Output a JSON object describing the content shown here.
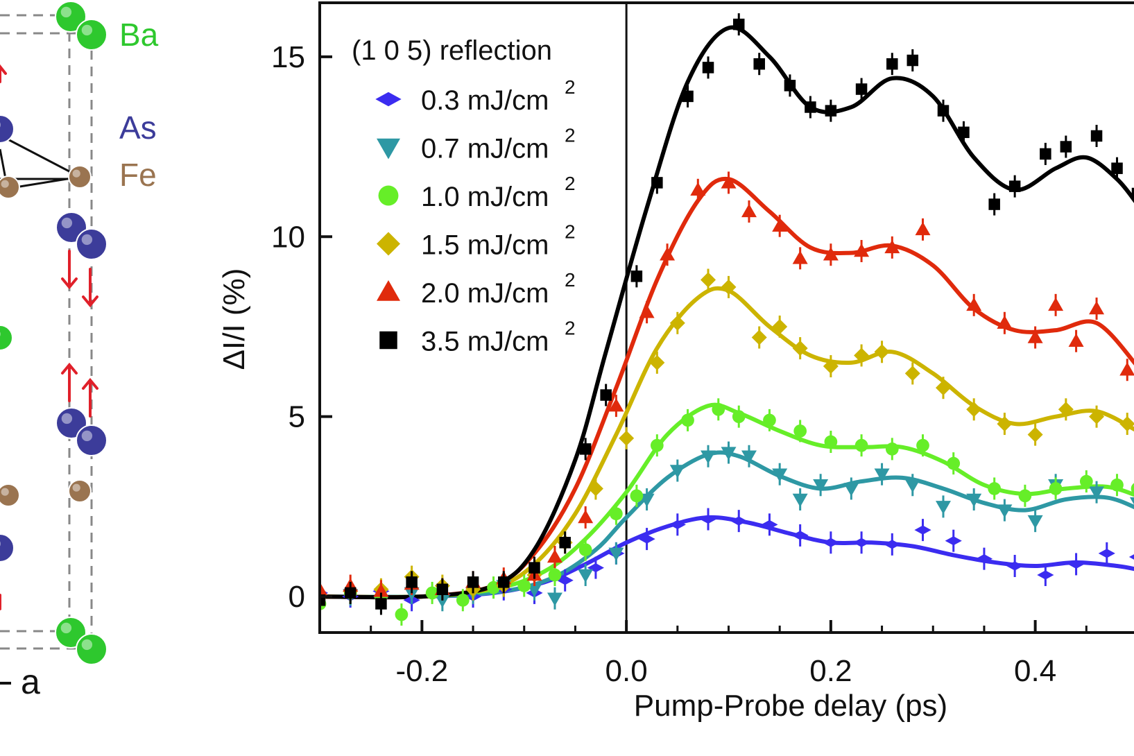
{
  "crystal": {
    "atom_labels": [
      "Ba",
      "As",
      "Fe"
    ],
    "axis_label": "a",
    "colors": {
      "Ba": "#2ec82e",
      "As": "#3c3c9a",
      "Fe": "#9a7450",
      "arrow": "#e0202a",
      "cell": "#888888"
    }
  },
  "chart_data": {
    "type": "scatter",
    "xlabel": "Pump-Probe delay (ps)",
    "ylabel": "ΔI/I (%)",
    "xlim": [
      -0.3,
      0.5
    ],
    "ylim": [
      -1,
      16.5
    ],
    "xticks": [
      -0.2,
      0.0,
      0.2,
      0.4
    ],
    "xtick_labels": [
      "-0.2",
      "0.0",
      "0.2",
      "0.4"
    ],
    "yticks": [
      0,
      5,
      10,
      15
    ],
    "ytick_labels": [
      "0",
      "5",
      "10",
      "15"
    ],
    "vline_x": 0.0,
    "legend": {
      "title": "(1 0 5) reflection",
      "position": "top-left"
    },
    "series": [
      {
        "name": "0.3 mJ/cm",
        "unit_exp": "2",
        "color": "#3b2cf0",
        "marker": "diamond-wide",
        "points": [
          [
            -0.3,
            0.1
          ],
          [
            -0.27,
            0.0
          ],
          [
            -0.24,
            0.15
          ],
          [
            -0.21,
            -0.1
          ],
          [
            -0.18,
            0.05
          ],
          [
            -0.15,
            0.0
          ],
          [
            -0.12,
            0.2
          ],
          [
            -0.09,
            0.1
          ],
          [
            -0.06,
            0.45
          ],
          [
            -0.03,
            0.8
          ],
          [
            -0.01,
            1.2
          ],
          [
            0.02,
            1.6
          ],
          [
            0.05,
            2.0
          ],
          [
            0.08,
            2.15
          ],
          [
            0.11,
            2.1
          ],
          [
            0.14,
            2.0
          ],
          [
            0.17,
            1.7
          ],
          [
            0.2,
            1.5
          ],
          [
            0.23,
            1.5
          ],
          [
            0.26,
            1.45
          ],
          [
            0.29,
            1.85
          ],
          [
            0.32,
            1.55
          ],
          [
            0.35,
            1.05
          ],
          [
            0.38,
            0.85
          ],
          [
            0.41,
            0.6
          ],
          [
            0.44,
            0.9
          ],
          [
            0.47,
            1.2
          ],
          [
            0.5,
            1.1
          ]
        ],
        "fit": [
          [
            -0.3,
            0.0
          ],
          [
            -0.2,
            0.0
          ],
          [
            -0.13,
            0.1
          ],
          [
            -0.08,
            0.4
          ],
          [
            -0.04,
            0.9
          ],
          [
            0.0,
            1.5
          ],
          [
            0.04,
            1.95
          ],
          [
            0.08,
            2.2
          ],
          [
            0.12,
            2.05
          ],
          [
            0.16,
            1.75
          ],
          [
            0.2,
            1.5
          ],
          [
            0.24,
            1.5
          ],
          [
            0.28,
            1.4
          ],
          [
            0.32,
            1.15
          ],
          [
            0.36,
            0.95
          ],
          [
            0.4,
            0.85
          ],
          [
            0.44,
            0.95
          ],
          [
            0.48,
            0.85
          ],
          [
            0.5,
            0.75
          ]
        ]
      },
      {
        "name": "0.7 mJ/cm",
        "unit_exp": "2",
        "color": "#2e98a4",
        "marker": "triangle-down",
        "points": [
          [
            -0.3,
            -0.1
          ],
          [
            -0.27,
            0.05
          ],
          [
            -0.24,
            -0.15
          ],
          [
            -0.21,
            0.1
          ],
          [
            -0.18,
            -0.1
          ],
          [
            -0.15,
            0.1
          ],
          [
            -0.12,
            0.3
          ],
          [
            -0.09,
            0.2
          ],
          [
            -0.07,
            -0.05
          ],
          [
            -0.04,
            0.6
          ],
          [
            -0.01,
            1.2
          ],
          [
            0.02,
            2.7
          ],
          [
            0.05,
            3.5
          ],
          [
            0.08,
            3.9
          ],
          [
            0.1,
            4.0
          ],
          [
            0.12,
            3.9
          ],
          [
            0.15,
            3.4
          ],
          [
            0.17,
            2.7
          ],
          [
            0.19,
            3.1
          ],
          [
            0.22,
            3.0
          ],
          [
            0.25,
            3.4
          ],
          [
            0.28,
            3.1
          ],
          [
            0.31,
            2.5
          ],
          [
            0.34,
            2.7
          ],
          [
            0.37,
            2.4
          ],
          [
            0.4,
            2.1
          ],
          [
            0.42,
            3.1
          ],
          [
            0.46,
            2.9
          ],
          [
            0.5,
            2.6
          ]
        ],
        "fit": [
          [
            -0.3,
            0.0
          ],
          [
            -0.2,
            0.0
          ],
          [
            -0.12,
            0.15
          ],
          [
            -0.07,
            0.55
          ],
          [
            -0.03,
            1.3
          ],
          [
            0.0,
            2.2
          ],
          [
            0.04,
            3.3
          ],
          [
            0.08,
            3.95
          ],
          [
            0.11,
            3.9
          ],
          [
            0.15,
            3.35
          ],
          [
            0.19,
            3.0
          ],
          [
            0.23,
            3.2
          ],
          [
            0.27,
            3.3
          ],
          [
            0.31,
            3.0
          ],
          [
            0.35,
            2.6
          ],
          [
            0.39,
            2.4
          ],
          [
            0.43,
            2.7
          ],
          [
            0.47,
            2.75
          ],
          [
            0.5,
            2.45
          ]
        ]
      },
      {
        "name": "1.0 mJ/cm",
        "unit_exp": "2",
        "color": "#66ee28",
        "marker": "circle",
        "points": [
          [
            -0.3,
            -0.2
          ],
          [
            -0.27,
            0.1
          ],
          [
            -0.24,
            0.0
          ],
          [
            -0.22,
            -0.5
          ],
          [
            -0.19,
            0.1
          ],
          [
            -0.16,
            -0.1
          ],
          [
            -0.13,
            0.25
          ],
          [
            -0.1,
            0.3
          ],
          [
            -0.07,
            0.6
          ],
          [
            -0.04,
            1.3
          ],
          [
            -0.01,
            2.3
          ],
          [
            0.01,
            2.8
          ],
          [
            0.03,
            4.2
          ],
          [
            0.06,
            4.9
          ],
          [
            0.09,
            5.2
          ],
          [
            0.11,
            5.0
          ],
          [
            0.14,
            4.9
          ],
          [
            0.17,
            4.6
          ],
          [
            0.2,
            4.3
          ],
          [
            0.23,
            4.2
          ],
          [
            0.26,
            4.1
          ],
          [
            0.29,
            4.2
          ],
          [
            0.32,
            3.7
          ],
          [
            0.36,
            3.0
          ],
          [
            0.39,
            2.8
          ],
          [
            0.42,
            3.0
          ],
          [
            0.45,
            3.2
          ],
          [
            0.48,
            3.1
          ],
          [
            0.5,
            3.0
          ]
        ],
        "fit": [
          [
            -0.3,
            0.0
          ],
          [
            -0.2,
            0.0
          ],
          [
            -0.13,
            0.2
          ],
          [
            -0.08,
            0.7
          ],
          [
            -0.04,
            1.6
          ],
          [
            0.0,
            2.9
          ],
          [
            0.04,
            4.5
          ],
          [
            0.08,
            5.3
          ],
          [
            0.11,
            5.1
          ],
          [
            0.15,
            4.6
          ],
          [
            0.19,
            4.2
          ],
          [
            0.23,
            4.15
          ],
          [
            0.27,
            4.15
          ],
          [
            0.31,
            3.75
          ],
          [
            0.35,
            3.1
          ],
          [
            0.39,
            2.85
          ],
          [
            0.43,
            3.0
          ],
          [
            0.47,
            3.05
          ],
          [
            0.5,
            2.8
          ]
        ]
      },
      {
        "name": "1.5 mJ/cm",
        "unit_exp": "2",
        "color": "#ccb400",
        "marker": "diamond",
        "points": [
          [
            -0.3,
            0.0
          ],
          [
            -0.27,
            0.15
          ],
          [
            -0.24,
            0.2
          ],
          [
            -0.21,
            0.55
          ],
          [
            -0.18,
            0.3
          ],
          [
            -0.15,
            0.2
          ],
          [
            -0.12,
            0.3
          ],
          [
            -0.09,
            0.6
          ],
          [
            -0.06,
            1.5
          ],
          [
            -0.03,
            3.0
          ],
          [
            0.0,
            4.4
          ],
          [
            0.03,
            6.5
          ],
          [
            0.05,
            7.6
          ],
          [
            0.08,
            8.8
          ],
          [
            0.1,
            8.6
          ],
          [
            0.13,
            7.2
          ],
          [
            0.15,
            7.5
          ],
          [
            0.17,
            6.9
          ],
          [
            0.2,
            6.4
          ],
          [
            0.23,
            6.7
          ],
          [
            0.25,
            6.8
          ],
          [
            0.28,
            6.2
          ],
          [
            0.31,
            5.8
          ],
          [
            0.34,
            5.2
          ],
          [
            0.37,
            4.8
          ],
          [
            0.4,
            4.5
          ],
          [
            0.43,
            5.2
          ],
          [
            0.46,
            5.0
          ],
          [
            0.49,
            4.8
          ]
        ],
        "fit": [
          [
            -0.3,
            0.0
          ],
          [
            -0.2,
            0.0
          ],
          [
            -0.13,
            0.25
          ],
          [
            -0.09,
            0.9
          ],
          [
            -0.05,
            2.3
          ],
          [
            -0.01,
            4.5
          ],
          [
            0.03,
            6.9
          ],
          [
            0.07,
            8.3
          ],
          [
            0.1,
            8.5
          ],
          [
            0.14,
            7.5
          ],
          [
            0.18,
            6.7
          ],
          [
            0.22,
            6.5
          ],
          [
            0.26,
            6.8
          ],
          [
            0.3,
            6.2
          ],
          [
            0.34,
            5.3
          ],
          [
            0.38,
            4.8
          ],
          [
            0.42,
            5.0
          ],
          [
            0.46,
            5.15
          ],
          [
            0.5,
            4.6
          ]
        ]
      },
      {
        "name": "2.0 mJ/cm",
        "unit_exp": "2",
        "color": "#e02a0c",
        "marker": "triangle-up",
        "points": [
          [
            -0.3,
            0.2
          ],
          [
            -0.27,
            0.3
          ],
          [
            -0.24,
            0.15
          ],
          [
            -0.21,
            0.35
          ],
          [
            -0.18,
            0.2
          ],
          [
            -0.15,
            0.4
          ],
          [
            -0.12,
            0.5
          ],
          [
            -0.09,
            0.6
          ],
          [
            -0.07,
            1.1
          ],
          [
            -0.04,
            2.2
          ],
          [
            -0.01,
            5.3
          ],
          [
            0.02,
            7.9
          ],
          [
            0.04,
            9.5
          ],
          [
            0.07,
            11.3
          ],
          [
            0.1,
            11.5
          ],
          [
            0.12,
            10.7
          ],
          [
            0.15,
            10.3
          ],
          [
            0.17,
            9.4
          ],
          [
            0.2,
            9.5
          ],
          [
            0.23,
            9.6
          ],
          [
            0.26,
            9.7
          ],
          [
            0.29,
            10.2
          ],
          [
            0.34,
            8.1
          ],
          [
            0.37,
            7.6
          ],
          [
            0.4,
            7.2
          ],
          [
            0.42,
            8.1
          ],
          [
            0.44,
            7.1
          ],
          [
            0.46,
            8.0
          ],
          [
            0.49,
            6.3
          ]
        ],
        "fit": [
          [
            -0.3,
            0.0
          ],
          [
            -0.2,
            0.0
          ],
          [
            -0.13,
            0.3
          ],
          [
            -0.09,
            1.2
          ],
          [
            -0.05,
            3.0
          ],
          [
            -0.01,
            5.8
          ],
          [
            0.03,
            8.8
          ],
          [
            0.07,
            11.0
          ],
          [
            0.1,
            11.6
          ],
          [
            0.14,
            10.7
          ],
          [
            0.18,
            9.7
          ],
          [
            0.22,
            9.55
          ],
          [
            0.26,
            9.75
          ],
          [
            0.3,
            9.2
          ],
          [
            0.34,
            8.0
          ],
          [
            0.38,
            7.4
          ],
          [
            0.42,
            7.4
          ],
          [
            0.46,
            7.6
          ],
          [
            0.5,
            6.4
          ]
        ]
      },
      {
        "name": "3.5 mJ/cm",
        "unit_exp": "2",
        "color": "#000000",
        "marker": "square",
        "points": [
          [
            -0.3,
            -0.1
          ],
          [
            -0.27,
            0.1
          ],
          [
            -0.24,
            -0.2
          ],
          [
            -0.21,
            0.4
          ],
          [
            -0.18,
            0.2
          ],
          [
            -0.15,
            0.4
          ],
          [
            -0.12,
            0.4
          ],
          [
            -0.09,
            0.8
          ],
          [
            -0.06,
            1.5
          ],
          [
            -0.04,
            4.1
          ],
          [
            -0.02,
            5.6
          ],
          [
            0.01,
            8.9
          ],
          [
            0.03,
            11.5
          ],
          [
            0.06,
            13.9
          ],
          [
            0.08,
            14.7
          ],
          [
            0.11,
            15.9
          ],
          [
            0.13,
            14.8
          ],
          [
            0.16,
            14.2
          ],
          [
            0.18,
            13.6
          ],
          [
            0.2,
            13.5
          ],
          [
            0.23,
            14.1
          ],
          [
            0.26,
            14.8
          ],
          [
            0.28,
            14.9
          ],
          [
            0.31,
            13.5
          ],
          [
            0.33,
            12.9
          ],
          [
            0.36,
            10.9
          ],
          [
            0.38,
            11.4
          ],
          [
            0.41,
            12.3
          ],
          [
            0.43,
            12.5
          ],
          [
            0.46,
            12.8
          ],
          [
            0.48,
            11.9
          ],
          [
            0.5,
            11.2
          ]
        ],
        "fit": [
          [
            -0.3,
            0.0
          ],
          [
            -0.2,
            0.0
          ],
          [
            -0.13,
            0.3
          ],
          [
            -0.09,
            1.3
          ],
          [
            -0.05,
            3.8
          ],
          [
            -0.02,
            6.8
          ],
          [
            0.02,
            10.8
          ],
          [
            0.06,
            14.3
          ],
          [
            0.1,
            15.8
          ],
          [
            0.14,
            15.0
          ],
          [
            0.18,
            13.6
          ],
          [
            0.22,
            13.6
          ],
          [
            0.26,
            14.4
          ],
          [
            0.3,
            13.9
          ],
          [
            0.34,
            12.2
          ],
          [
            0.38,
            11.3
          ],
          [
            0.42,
            11.9
          ],
          [
            0.45,
            12.2
          ],
          [
            0.48,
            11.6
          ],
          [
            0.5,
            10.9
          ]
        ]
      }
    ]
  }
}
